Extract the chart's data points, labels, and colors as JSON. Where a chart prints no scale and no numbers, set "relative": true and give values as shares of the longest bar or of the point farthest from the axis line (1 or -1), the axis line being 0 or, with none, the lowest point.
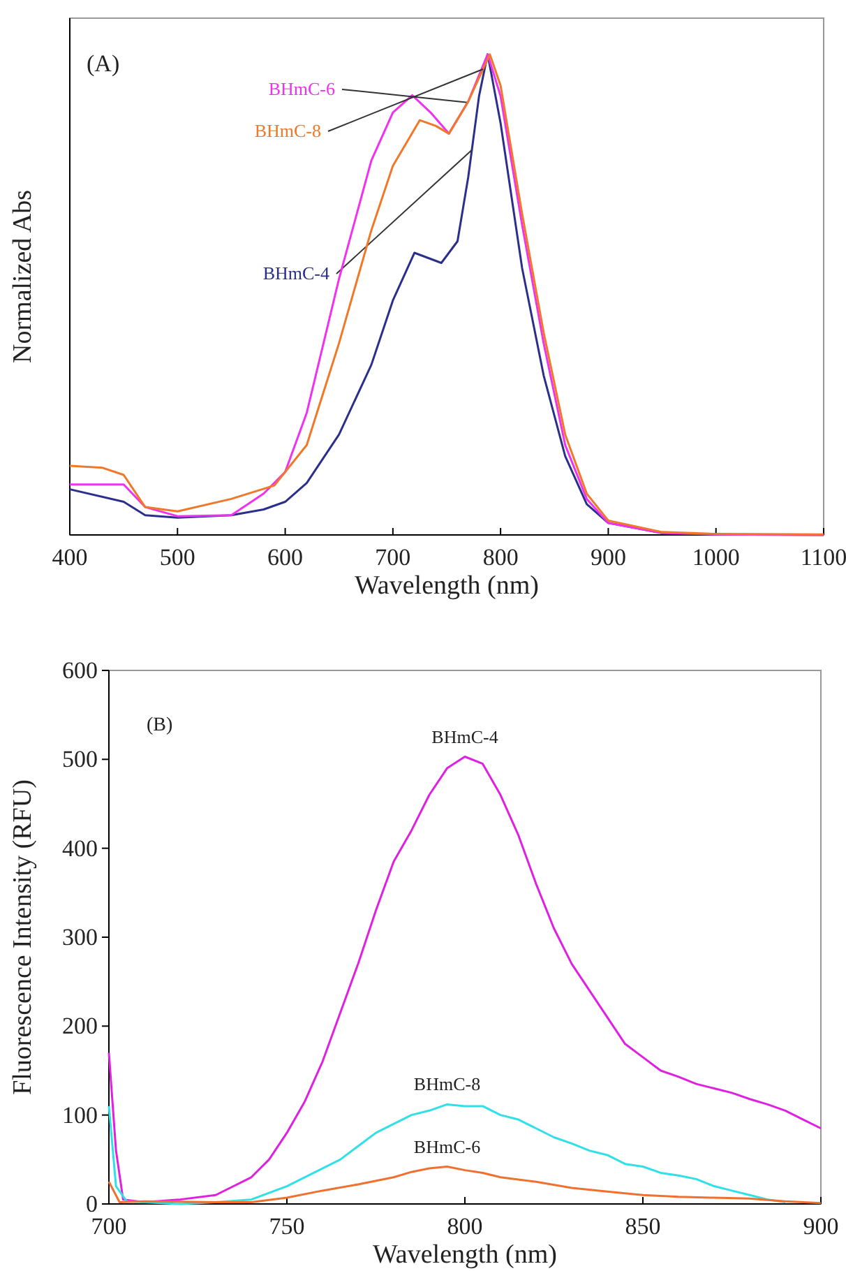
{
  "chart_data": [
    {
      "type": "line",
      "relative": true,
      "xlabel": "Wavelength (nm)",
      "ylabel": "Normalized Abs",
      "annotations": [
        "(A)"
      ],
      "xlim": [
        400,
        1100
      ],
      "xticks": [
        400,
        500,
        600,
        700,
        800,
        900,
        1000,
        1100
      ],
      "grid": false,
      "series": [
        {
          "name": "BHmC-4",
          "color": "#2b2f8c",
          "x": [
            400,
            450,
            470,
            500,
            550,
            580,
            600,
            620,
            650,
            680,
            700,
            720,
            745,
            760,
            770,
            780,
            788,
            800,
            820,
            840,
            860,
            880,
            900,
            950,
            1000,
            1100
          ],
          "values": [
            0.095,
            0.069,
            0.041,
            0.036,
            0.041,
            0.053,
            0.069,
            0.108,
            0.209,
            0.354,
            0.488,
            0.587,
            0.566,
            0.611,
            0.745,
            0.913,
            1,
            0.857,
            0.555,
            0.332,
            0.164,
            0.064,
            0.025,
            0.004,
            0.001,
            0
          ]
        },
        {
          "name": "BHmC-6",
          "color": "#f032f0",
          "x": [
            400,
            450,
            470,
            500,
            550,
            580,
            600,
            620,
            650,
            680,
            700,
            718,
            735,
            752,
            770,
            788,
            800,
            820,
            840,
            860,
            880,
            900,
            950,
            1000,
            1100
          ],
          "values": [
            0.105,
            0.105,
            0.058,
            0.039,
            0.041,
            0.086,
            0.131,
            0.254,
            0.533,
            0.779,
            0.879,
            0.915,
            0.879,
            0.835,
            0.902,
            1,
            0.913,
            0.645,
            0.399,
            0.187,
            0.075,
            0.025,
            0.004,
            0.001,
            0
          ]
        },
        {
          "name": "BHmC-8",
          "color": "#f07828",
          "x": [
            400,
            430,
            450,
            470,
            500,
            550,
            590,
            620,
            650,
            680,
            700,
            725,
            740,
            752,
            770,
            790,
            800,
            820,
            840,
            860,
            880,
            900,
            950,
            1000,
            1100
          ],
          "values": [
            0.144,
            0.14,
            0.125,
            0.058,
            0.049,
            0.075,
            0.103,
            0.187,
            0.399,
            0.634,
            0.768,
            0.863,
            0.851,
            0.835,
            0.902,
            1,
            0.935,
            0.668,
            0.421,
            0.209,
            0.086,
            0.03,
            0.006,
            0.002,
            0.001
          ]
        }
      ]
    },
    {
      "type": "line",
      "xlabel": "Wavelength (nm)",
      "ylabel": "Fluorescence Intensity (RFU)",
      "annotations": [
        "(B)"
      ],
      "xlim": [
        700,
        900
      ],
      "xticks": [
        700,
        750,
        800,
        850,
        900
      ],
      "ylim": [
        0,
        600
      ],
      "yticks": [
        0,
        100,
        200,
        300,
        400,
        500,
        600
      ],
      "grid": false,
      "series": [
        {
          "name": "BHmC-4",
          "color": "#e020e0",
          "x": [
            700,
            702,
            704,
            710,
            720,
            730,
            740,
            745,
            750,
            755,
            760,
            765,
            770,
            775,
            780,
            785,
            790,
            795,
            800,
            805,
            810,
            815,
            820,
            825,
            830,
            835,
            840,
            845,
            850,
            855,
            860,
            865,
            870,
            875,
            880,
            885,
            890,
            895,
            900
          ],
          "values": [
            170,
            60,
            5,
            2,
            5,
            10,
            30,
            50,
            80,
            115,
            160,
            215,
            270,
            330,
            385,
            420,
            460,
            490,
            503,
            495,
            460,
            415,
            360,
            310,
            270,
            240,
            210,
            180,
            165,
            150,
            143,
            135,
            130,
            125,
            118,
            112,
            105,
            95,
            85
          ]
        },
        {
          "name": "BHmC-8",
          "color": "#30e0e8",
          "x": [
            700,
            702,
            705,
            710,
            720,
            730,
            740,
            750,
            760,
            765,
            770,
            775,
            780,
            785,
            790,
            795,
            800,
            805,
            810,
            815,
            820,
            825,
            830,
            835,
            840,
            845,
            850,
            855,
            860,
            865,
            870,
            875,
            880,
            885,
            890
          ],
          "values": [
            110,
            20,
            3,
            2,
            0,
            2,
            5,
            20,
            40,
            50,
            65,
            80,
            90,
            100,
            105,
            112,
            110,
            110,
            100,
            95,
            85,
            75,
            68,
            60,
            55,
            45,
            42,
            35,
            32,
            28,
            20,
            15,
            10,
            5,
            2
          ]
        },
        {
          "name": "BHmC-6",
          "color": "#f07030",
          "x": [
            700,
            703,
            710,
            730,
            740,
            750,
            760,
            770,
            780,
            785,
            790,
            795,
            800,
            805,
            810,
            820,
            830,
            840,
            850,
            860,
            870,
            880,
            890,
            900
          ],
          "values": [
            25,
            2,
            3,
            2,
            2,
            7,
            15,
            22,
            30,
            36,
            40,
            42,
            38,
            35,
            30,
            25,
            18,
            14,
            10,
            8,
            7,
            6,
            3,
            1
          ]
        }
      ]
    }
  ]
}
